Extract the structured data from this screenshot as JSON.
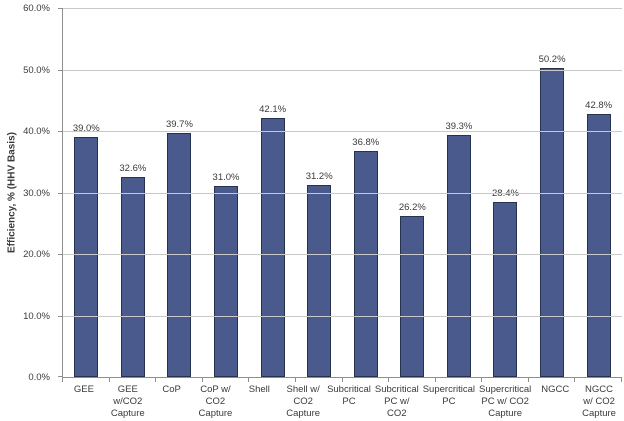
{
  "chart_data": {
    "type": "bar",
    "title": "",
    "ylabel": "Efficiency, % (HHV Basis)",
    "xlabel": "",
    "categories": [
      "GEE",
      "GEE w/CO2 Capture",
      "CoP",
      "CoP w/ CO2 Capture",
      "Shell",
      "Shell w/ CO2 Capture",
      "Subcritical PC",
      "Subcritical PC w/ CO2 Capture",
      "Supercritical PC",
      "Supercritical PC w/ CO2 Capture",
      "NGCC",
      "NGCC w/ CO2 Capture"
    ],
    "values": [
      39.0,
      32.6,
      39.7,
      31.0,
      42.1,
      31.2,
      36.8,
      26.2,
      39.3,
      28.4,
      50.2,
      42.8
    ],
    "data_labels": [
      "39.0%",
      "32.6%",
      "39.7%",
      "31.0%",
      "42.1%",
      "31.2%",
      "36.8%",
      "26.2%",
      "39.3%",
      "28.4%",
      "50.2%",
      "42.8%"
    ],
    "ylim": [
      0,
      60
    ],
    "ytick_step": 10,
    "ytick_labels": [
      "0.0%",
      "10.0%",
      "20.0%",
      "30.0%",
      "40.0%",
      "50.0%",
      "60.0%"
    ],
    "grid": true,
    "legend": "none",
    "bar_color": "#4a5a8c",
    "bar_border_color": "#27324f",
    "gridline_color": "#c9c9c9",
    "axis_color": "#8e8e8e",
    "text_color": "#3a3a3a"
  }
}
